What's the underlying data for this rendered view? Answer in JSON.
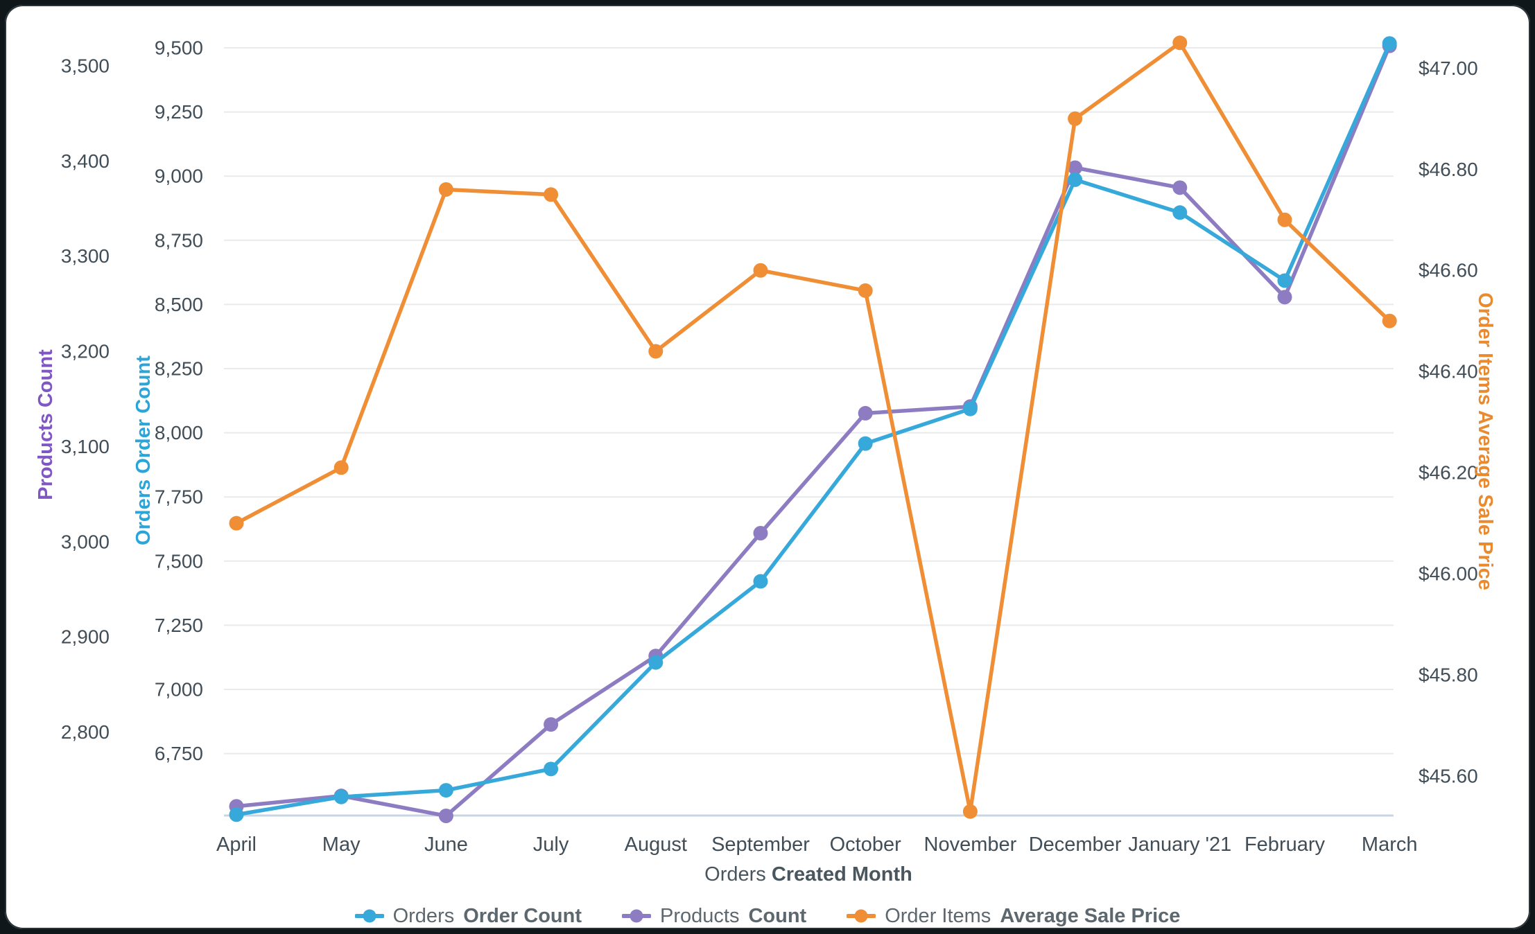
{
  "chart_data": {
    "type": "line",
    "categories": [
      "April",
      "May",
      "June",
      "July",
      "August",
      "September",
      "October",
      "November",
      "December",
      "January '21",
      "February",
      "March"
    ],
    "series": [
      {
        "id": "products-count",
        "label_regular": "Products",
        "label_bold": "Count",
        "color": "#8d7cc2",
        "axis": "left_outer",
        "values": [
          2722,
          2733,
          2712,
          2808,
          2880,
          3009,
          3135,
          3142,
          3393,
          3372,
          3257,
          3521
        ]
      },
      {
        "id": "orders-order-count",
        "label_regular": "Orders",
        "label_bold": "Order Count",
        "color": "#36a9da",
        "axis": "left_inner",
        "values": [
          6512,
          6581,
          6607,
          6690,
          7105,
          7421,
          7958,
          8093,
          8986,
          8858,
          8593,
          9517
        ]
      },
      {
        "id": "order-items-average-sale-price",
        "label_regular": "Order Items",
        "label_bold": "Average Sale Price",
        "color": "#ef8e35",
        "axis": "right",
        "values": [
          46.1,
          46.21,
          46.76,
          46.75,
          46.44,
          46.6,
          46.56,
          45.53,
          46.9,
          47.05,
          46.7,
          46.5
        ]
      }
    ],
    "axes": {
      "left_outer": {
        "title": "Products Count",
        "title_color": "#7e57c2",
        "tick_values": [
          3500,
          3400,
          3300,
          3200,
          3100,
          3000,
          2900,
          2800
        ],
        "tick_labels": [
          "3,500",
          "3,400",
          "3,300",
          "3,200",
          "3,100",
          "3,000",
          "2,900",
          "2,800"
        ]
      },
      "left_inner": {
        "title": "Orders Order Count",
        "title_color": "#29a5da",
        "tick_values": [
          9500,
          9250,
          9000,
          8750,
          8500,
          8250,
          8000,
          7750,
          7500,
          7250,
          7000,
          6750
        ],
        "tick_labels": [
          "9,500",
          "9,250",
          "9,000",
          "8,750",
          "8,500",
          "8,250",
          "8,000",
          "7,750",
          "7,500",
          "7,250",
          "7,000",
          "6,750"
        ]
      },
      "right": {
        "title": "Order Items Average Sale Price",
        "title_color": "#ea8a2f",
        "tick_values": [
          47.0,
          46.8,
          46.6,
          46.4,
          46.2,
          46.0,
          45.8,
          45.6
        ],
        "tick_labels": [
          "$47.00",
          "$46.80",
          "$46.60",
          "$46.40",
          "$46.20",
          "$46.00",
          "$45.80",
          "$45.60"
        ]
      }
    },
    "xlabel_regular": "Orders",
    "xlabel_bold": "Created Month",
    "grid": true,
    "legend_position": "bottom",
    "tick_text_color": "#414e58",
    "gridline_color": "#e9eaec",
    "baseline_color": "#c9d4e4",
    "ylim_left_inner": [
      6510,
      9520
    ],
    "ylim_left_outer": [
      2712,
      3523
    ],
    "ylim_right": [
      45.52,
      47.06
    ]
  }
}
